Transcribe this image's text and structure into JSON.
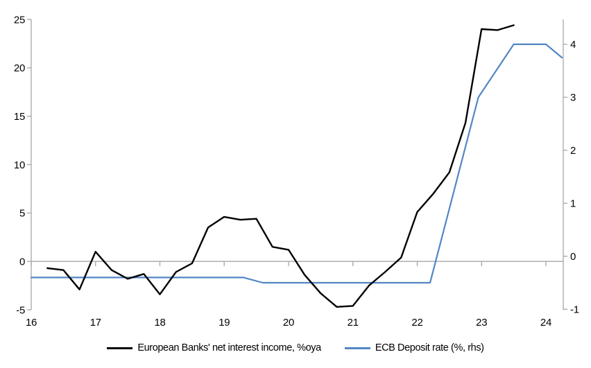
{
  "chart_data": {
    "type": "line",
    "title": "",
    "grid": false,
    "zero_line": true,
    "legend_position": "bottom",
    "x_axis": {
      "range": [
        16,
        24.27
      ],
      "ticks": [
        16,
        17,
        18,
        19,
        20,
        21,
        22,
        23,
        24
      ],
      "tick_labels": [
        "16",
        "17",
        "18",
        "19",
        "20",
        "21",
        "22",
        "23",
        "24"
      ]
    },
    "left_axis": {
      "range": [
        -5,
        25
      ],
      "ticks": [
        25,
        20,
        15,
        10,
        5,
        0,
        -5
      ],
      "tick_labels": [
        "25",
        "20",
        "15",
        "10",
        "5",
        "0",
        "-5"
      ]
    },
    "right_axis": {
      "range": [
        -1.01,
        4.47
      ],
      "ticks": [
        4,
        3,
        2,
        1,
        0,
        -1
      ],
      "tick_labels": [
        "4",
        "3",
        "2",
        "1",
        "0",
        "-1"
      ]
    },
    "series": [
      {
        "name": "ECB Deposit rate (%, rhs)",
        "axis": "right",
        "color": "#5186C5",
        "stroke_width": 2.2,
        "points": [
          [
            16.0,
            -0.4
          ],
          [
            19.3,
            -0.4
          ],
          [
            19.6,
            -0.5
          ],
          [
            22.2,
            -0.5
          ],
          [
            22.95,
            3.0
          ],
          [
            23.5,
            4.0
          ],
          [
            24.0,
            4.0
          ],
          [
            24.25,
            3.75
          ]
        ]
      },
      {
        "name": "European Banks' net interest income, %oya",
        "axis": "left",
        "color": "#000000",
        "stroke_width": 2.4,
        "points": [
          [
            16.25,
            -0.7
          ],
          [
            16.5,
            -0.9
          ],
          [
            16.75,
            -2.9
          ],
          [
            17.0,
            1.0
          ],
          [
            17.25,
            -0.9
          ],
          [
            17.5,
            -1.8
          ],
          [
            17.75,
            -1.3
          ],
          [
            18.0,
            -3.4
          ],
          [
            18.25,
            -1.1
          ],
          [
            18.5,
            -0.2
          ],
          [
            18.75,
            3.5
          ],
          [
            19.0,
            4.6
          ],
          [
            19.25,
            4.3
          ],
          [
            19.5,
            4.4
          ],
          [
            19.75,
            1.5
          ],
          [
            20.0,
            1.2
          ],
          [
            20.25,
            -1.4
          ],
          [
            20.5,
            -3.3
          ],
          [
            20.75,
            -4.7
          ],
          [
            21.0,
            -4.6
          ],
          [
            21.25,
            -2.5
          ],
          [
            21.5,
            -1.1
          ],
          [
            21.75,
            0.4
          ],
          [
            22.0,
            5.1
          ],
          [
            22.25,
            7.0
          ],
          [
            22.5,
            9.2
          ],
          [
            22.75,
            14.3
          ],
          [
            23.0,
            24.0
          ],
          [
            23.25,
            23.9
          ],
          [
            23.5,
            24.4
          ]
        ]
      }
    ]
  },
  "legend": {
    "items": [
      {
        "label": "European Banks' net interest income, %oya",
        "color": "#000000"
      },
      {
        "label": "ECB Deposit rate (%, rhs)",
        "color": "#5186C5"
      }
    ]
  },
  "colors": {
    "axis": "#a6a6a6",
    "background": "#ffffff",
    "black_series": "#000000",
    "blue_series": "#5186C5"
  }
}
